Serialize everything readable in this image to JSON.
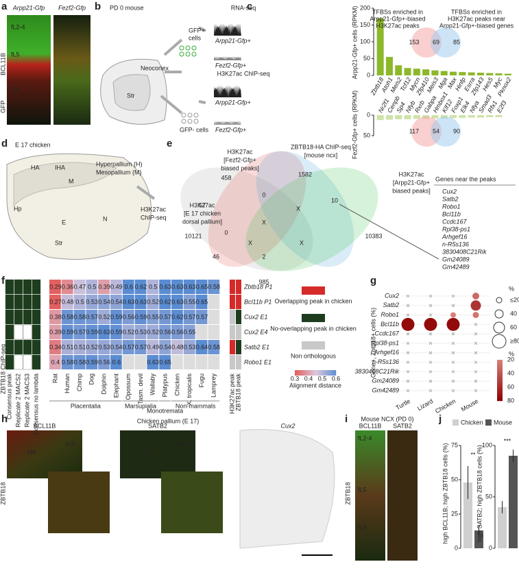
{
  "panels": {
    "a": {
      "label": "a",
      "titles": [
        "Arpp21-Gfp",
        "Fezf2-Gfp"
      ],
      "side": [
        "GFP",
        "BCL11B"
      ],
      "layers": [
        "fL2-4",
        "fL5",
        "fL6"
      ]
    },
    "b": {
      "label": "b",
      "title": "PD 0 mouse",
      "rna": "RNA-seq",
      "chip": "H3K27ac ChIP-seq",
      "gfp_pos": [
        "GFP+",
        "cells"
      ],
      "gfp_neg": "GFP- cells",
      "region": "Neocortex",
      "str": "Str",
      "tracks": [
        "Arpp21-Gfp+",
        "Fezf2-Gfp+",
        "Arpp21-Gfp+",
        "Fezf2-Gfp+"
      ]
    },
    "c": {
      "label": "c",
      "color": "#8db82b",
      "top": {
        "ylabel": "Arpp21-Gfp+ cells (RPKM)",
        "categories": [
          "Zbtb18",
          "Atoh1",
          "Meis2",
          "Tcf12",
          "Mycn",
          "Zfp410",
          "Meis3",
          "Mga",
          "Max",
          "Hinfp",
          "Esrra",
          "Zfp143",
          "Hes5",
          "Myc",
          "Pknox2"
        ],
        "values": [
          170,
          55,
          30,
          22,
          20,
          18,
          15,
          13,
          11,
          10,
          9,
          8,
          7,
          6,
          5
        ],
        "ylim": [
          0,
          200
        ],
        "yticks": [
          0,
          50,
          100,
          150,
          200
        ]
      },
      "bottom": {
        "ylabel": "Fezf2-Gfp+ cells (RPKM)",
        "categories": [
          "Nr2f1",
          "Cenpb",
          "Sp4",
          "Nfyb",
          "Rxrb",
          "Gabpa",
          "Hmbox1",
          "Klf12",
          "Foxp1",
          "Elk4",
          "Nfya",
          "Smad3",
          "Rfx1",
          "E2f3"
        ],
        "values": [
          12,
          11,
          10,
          10,
          9,
          9,
          8,
          8,
          7,
          7,
          6,
          6,
          5,
          5
        ],
        "ylim": [
          0,
          50
        ],
        "yticks": [
          0,
          50
        ]
      },
      "note_left": [
        "TFBSs enriched in",
        "Arpp21-Gfp+-biased",
        "H3K27ac peaks"
      ],
      "note_right": [
        "TFBSs enriched in",
        "H3K27ac peaks near",
        "Arpp21-Gfp+-biased genes"
      ],
      "venn_top": [
        153,
        69,
        85
      ],
      "venn_bottom": [
        117,
        54,
        90
      ]
    },
    "d": {
      "label": "d",
      "title": "E 17 chicken",
      "regions": [
        "Hyperpallium (H)",
        "Mesopallium (M)"
      ],
      "assay": [
        "H3K27ac",
        "ChIP-seq"
      ],
      "areas": [
        "HA",
        "IHA",
        "M",
        "Hp",
        "E",
        "N",
        "Str"
      ]
    },
    "e": {
      "label": "e",
      "sets": [
        {
          "lines": [
            "H3K27ac",
            "[E 17 chicken",
            "dorsal pallium]"
          ],
          "color": "#aaaaaa"
        },
        {
          "lines": [
            "H3K27ac",
            "[Fezf2-Gfp+",
            "biased peaks]"
          ],
          "color": "#e8504f"
        },
        {
          "lines": [
            "ZBTB18-HA ChIP-seq",
            "[mouse ncx]"
          ],
          "color": "#4aa3d8"
        },
        {
          "lines": [
            "H3K27ac",
            "[Arpp21-Gfp+",
            "biased peaks]"
          ],
          "color": "#3cc24a"
        }
      ],
      "counts": [
        458,
        1582,
        57,
        0,
        10,
        10121,
        10383,
        0,
        "X",
        "X",
        46,
        "X",
        "X",
        2,
        985
      ],
      "genes_title": "Genes near the peaks",
      "genes": [
        "Cux2",
        "Satb2",
        "Robo1",
        "Bcl11b",
        "Ccdc167",
        "Rpl38-ps1",
        "Arhgef16",
        "n-R5s136",
        "3830408C21Rik",
        "Gm24089",
        "Gm42489"
      ]
    },
    "f": {
      "label": "f",
      "rows": [
        "Zbtb18 P1",
        "Bcl11b P1",
        "Cux2 E1",
        "Cux2 E4",
        "Satb2 E1",
        "Robo1 E1"
      ],
      "species": [
        "Rat",
        "Human",
        "Chimp",
        "Dog",
        "Dolphin",
        "Elephant",
        "Opossum",
        "Tasm. devil",
        "Wallaby",
        "Platypus",
        "Chicken",
        "X. tropicalis",
        "Fugu",
        "Lamprey"
      ],
      "values": [
        [
          0.29,
          0.36,
          0.47,
          0.5,
          0.39,
          0.49,
          0.6,
          0.62,
          0.5,
          0.63,
          0.63,
          0.63,
          0.65,
          0.58
        ],
        [
          0.27,
          0.48,
          0.5,
          0.53,
          0.54,
          0.54,
          0.63,
          0.63,
          0.52,
          0.62,
          0.63,
          0.55,
          0.65,
          null
        ],
        [
          0.38,
          0.58,
          0.58,
          0.57,
          0.52,
          0.59,
          0.56,
          0.59,
          0.55,
          0.57,
          0.62,
          0.57,
          0.57,
          null
        ],
        [
          0.39,
          0.59,
          0.57,
          0.59,
          0.63,
          0.59,
          0.52,
          0.53,
          0.52,
          0.56,
          0.56,
          0.55,
          null,
          null
        ],
        [
          0.34,
          0.51,
          0.51,
          0.52,
          0.53,
          0.54,
          0.57,
          0.57,
          0.49,
          0.54,
          0.48,
          0.53,
          0.64,
          0.58
        ],
        [
          0.4,
          0.58,
          0.58,
          0.59,
          0.56,
          0.6,
          null,
          null,
          0.63,
          0.65,
          null,
          null,
          null,
          null
        ]
      ],
      "groups": [
        {
          "name": "Placentalia",
          "cols": [
            0,
            5
          ]
        },
        {
          "name": "Marsupialia",
          "cols": [
            6,
            8
          ]
        },
        {
          "name": "Monotremata",
          "cols": [
            9,
            9
          ]
        },
        {
          "name": "Non-mammals",
          "cols": [
            10,
            13
          ]
        }
      ],
      "chip_title": "ZBTB18 ChIP-seq",
      "chip_cols": [
        "Consensus peak",
        "Replicate 2 MACS2",
        "Replicate 2 MACS3",
        "Consensus no lambda"
      ],
      "chip_peaks": [
        [
          1,
          1,
          1,
          1
        ],
        [
          1,
          1,
          1,
          1
        ],
        [
          1,
          1,
          1,
          1
        ],
        [
          1,
          0,
          0,
          1
        ],
        [
          1,
          1,
          1,
          1
        ],
        [
          1,
          0,
          0,
          1
        ]
      ],
      "peak_cols": [
        "H3K27ac peak",
        "ZBTB18 peak"
      ],
      "peak_status": [
        [
          0,
          0
        ],
        [
          0,
          0
        ],
        [
          2,
          1
        ],
        [
          2,
          2
        ],
        [
          0,
          1
        ],
        [
          2,
          2
        ]
      ],
      "legend": [
        {
          "label": "Overlapping peak in chicken",
          "color": "#d42a2a"
        },
        {
          "label": "No-overlapping peak in chicken",
          "color": "#1e3d1e"
        },
        {
          "label": "Non orthologous",
          "color": "#c8c8c8"
        }
      ],
      "scale_title": "Alignment distance",
      "scale_ticks": [
        0.3,
        0.4,
        0.5,
        0.6
      ]
    },
    "g": {
      "label": "g",
      "ylabel": "Gene+, Zbtb18+ cells (%)",
      "genes": [
        "Cux2",
        "Satb2",
        "Robo1",
        "Bcl11b",
        "Ccdc167",
        "Rpl38-ps1",
        "Arhgef16",
        "n-R5s136",
        "3830408C21Rik",
        "Gm24089",
        "Gm42489"
      ],
      "species": [
        "Turtle",
        "Lizard",
        "Chicken",
        "Mouse"
      ],
      "values": [
        [
          0,
          0,
          0,
          30
        ],
        [
          0,
          0,
          0,
          55
        ],
        [
          0,
          0,
          20,
          25
        ],
        [
          75,
          75,
          75,
          0
        ],
        [
          0,
          0,
          0,
          0
        ],
        [
          0,
          0,
          0,
          0
        ],
        [
          0,
          0,
          0,
          0
        ],
        [
          0,
          0,
          0,
          0
        ],
        [
          0,
          0,
          0,
          0
        ],
        [
          0,
          0,
          0,
          0
        ],
        [
          0,
          0,
          0,
          0
        ]
      ],
      "size_title": "%",
      "size_legend": [
        {
          "value": 20,
          "label": "≤20"
        },
        40,
        60,
        {
          "value": 80,
          "label": "≥80"
        }
      ],
      "color_title": "%",
      "color_ticks": [
        20,
        40,
        60,
        80
      ]
    },
    "h": {
      "label": "h",
      "title": "Chicken pallium (E 17)",
      "stains": [
        "BCL11B",
        "SATB2",
        "Cux2"
      ],
      "side": "ZBTB18",
      "areas": [
        "HA",
        "IHA",
        "HA",
        "IHA"
      ]
    },
    "i": {
      "label": "i",
      "title": "Mouse NCX (PD 0)",
      "stains": [
        "BCL11B",
        "SATB2"
      ],
      "side": "ZBTB18",
      "layers": [
        "fL2-4",
        "fL5",
        "fL6"
      ]
    },
    "j": {
      "label": "j",
      "legend": [
        {
          "name": "Chicken",
          "color": "#cfcfcf"
        },
        {
          "name": "Mouse",
          "color": "#555555"
        }
      ],
      "charts": [
        {
          "ylabel": "high BCL11B; high ZBTB18 cells (%)",
          "values": [
            48,
            13
          ],
          "errors": [
            12,
            4
          ],
          "ylim": [
            0,
            75
          ],
          "yticks": [
            0,
            25,
            50,
            75
          ],
          "sig": "**"
        },
        {
          "ylabel": "high SATB2; high ZBTB18 cells (%)",
          "values": [
            40,
            90
          ],
          "errors": [
            6,
            6
          ],
          "ylim": [
            0,
            100
          ],
          "yticks": [
            0,
            50,
            100
          ],
          "sig": "***"
        }
      ]
    }
  }
}
